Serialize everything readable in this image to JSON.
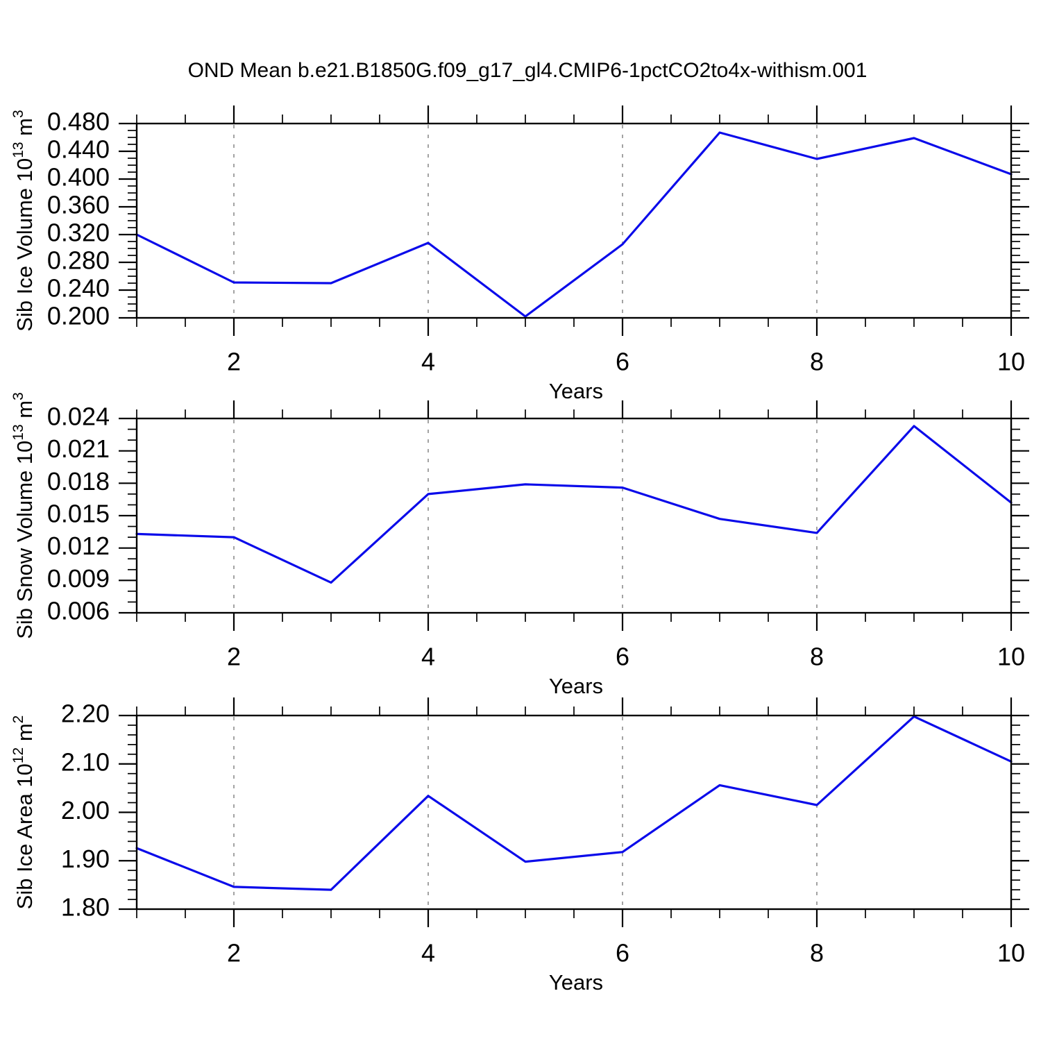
{
  "title": "OND Mean b.e21.B1850G.f09_g17_gl4.CMIP6-1pctCO2to4x-withism.001",
  "colors": {
    "line": "#0b0bea",
    "axis": "#000000",
    "grid": "#a3a3a3",
    "background": "#ffffff"
  },
  "chart_data": [
    {
      "type": "line",
      "title": "",
      "xlabel": "Years",
      "ylabel": "Sib Ice Volume 10¹³ m³",
      "ylabel_parts": [
        {
          "t": "Sib Ice Volume 10"
        },
        {
          "t": "13",
          "sup": true
        },
        {
          "t": " m"
        },
        {
          "t": "3",
          "sup": true
        }
      ],
      "x": [
        1,
        2,
        3,
        4,
        5,
        6,
        7,
        8,
        9,
        10
      ],
      "values": [
        0.32,
        0.251,
        0.25,
        0.308,
        0.202,
        0.306,
        0.467,
        0.429,
        0.459,
        0.407
      ],
      "xlim": [
        1,
        10
      ],
      "ylim": [
        0.2,
        0.48
      ],
      "xticks": [
        2,
        4,
        6,
        8,
        10
      ],
      "x_minor_step": 0.5,
      "ytick_step": 0.04,
      "ytick_minor_step": 0.01,
      "y_decimals": 3,
      "grid_x": [
        2,
        4,
        6,
        8
      ],
      "grid_style": "vertical-dashed",
      "legend": "none"
    },
    {
      "type": "line",
      "title": "",
      "xlabel": "Years",
      "ylabel": "Sib Snow Volume 10¹³ m³",
      "ylabel_parts": [
        {
          "t": "Sib Snow Volume 10"
        },
        {
          "t": "13",
          "sup": true
        },
        {
          "t": " m"
        },
        {
          "t": "3",
          "sup": true
        }
      ],
      "x": [
        1,
        2,
        3,
        4,
        5,
        6,
        7,
        8,
        9,
        10
      ],
      "values": [
        0.0133,
        0.013,
        0.0088,
        0.017,
        0.0179,
        0.0176,
        0.0147,
        0.0134,
        0.0233,
        0.0162
      ],
      "xlim": [
        1,
        10
      ],
      "ylim": [
        0.006,
        0.024
      ],
      "xticks": [
        2,
        4,
        6,
        8,
        10
      ],
      "x_minor_step": 0.5,
      "ytick_step": 0.003,
      "ytick_minor_step": 0.001,
      "y_decimals": 3,
      "grid_x": [
        2,
        4,
        6,
        8
      ],
      "grid_style": "vertical-dashed",
      "legend": "none"
    },
    {
      "type": "line",
      "title": "",
      "xlabel": "Years",
      "ylabel": "Sib Ice Area 10¹² m²",
      "ylabel_parts": [
        {
          "t": "Sib Ice Area 10"
        },
        {
          "t": "12",
          "sup": true
        },
        {
          "t": " m"
        },
        {
          "t": "2",
          "sup": true
        }
      ],
      "x": [
        1,
        2,
        3,
        4,
        5,
        6,
        7,
        8,
        9,
        10
      ],
      "values": [
        1.926,
        1.846,
        1.84,
        2.034,
        1.898,
        1.918,
        2.056,
        2.015,
        2.198,
        2.105
      ],
      "xlim": [
        1,
        10
      ],
      "ylim": [
        1.8,
        2.2
      ],
      "xticks": [
        2,
        4,
        6,
        8,
        10
      ],
      "x_minor_step": 0.5,
      "ytick_step": 0.1,
      "ytick_minor_step": 0.02,
      "y_decimals": 2,
      "grid_x": [
        2,
        4,
        6,
        8
      ],
      "grid_style": "vertical-dashed",
      "legend": "none"
    }
  ]
}
